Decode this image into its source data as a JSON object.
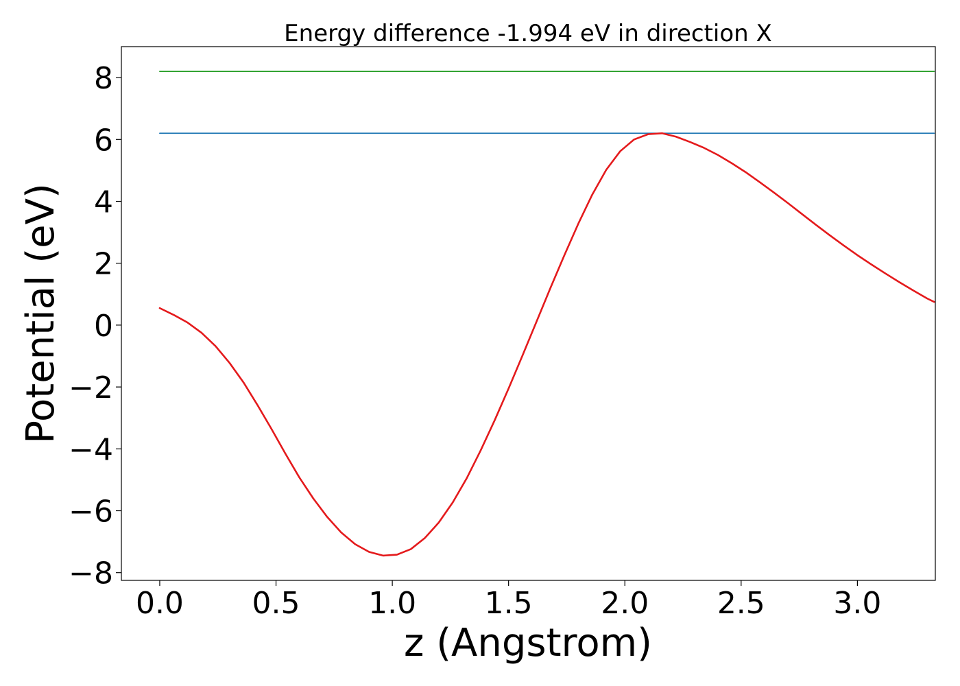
{
  "chart_data": {
    "type": "line",
    "title": "Energy difference -1.994 eV in direction X",
    "xlabel": "z (Angstrom)",
    "ylabel": "Potential (eV)",
    "xlim": [
      -0.165,
      3.335
    ],
    "ylim": [
      -8.25,
      9.0
    ],
    "xticks": [
      0.0,
      0.5,
      1.0,
      1.5,
      2.0,
      2.5,
      3.0
    ],
    "xtick_labels": [
      "0.0",
      "0.5",
      "1.0",
      "1.5",
      "2.0",
      "2.5",
      "3.0"
    ],
    "yticks": [
      -8,
      -6,
      -4,
      -2,
      0,
      2,
      4,
      6,
      8
    ],
    "ytick_labels": [
      "−8",
      "−6",
      "−4",
      "−2",
      "0",
      "2",
      "4",
      "6",
      "8"
    ],
    "grid": false,
    "legend": "none",
    "series": [
      {
        "color": "#2ca02c",
        "style": "horizontal",
        "x": [
          0.0,
          3.33
        ],
        "y": [
          8.2,
          8.2
        ]
      },
      {
        "color": "#1f77b4",
        "style": "horizontal",
        "x": [
          0.0,
          3.33
        ],
        "y": [
          6.2,
          6.2
        ]
      },
      {
        "color": "#e41a1c",
        "style": "curve",
        "x": [
          0.0,
          0.06,
          0.12,
          0.18,
          0.24,
          0.3,
          0.36,
          0.42,
          0.48,
          0.54,
          0.6,
          0.66,
          0.72,
          0.78,
          0.84,
          0.9,
          0.96,
          1.02,
          1.08,
          1.14,
          1.2,
          1.26,
          1.32,
          1.38,
          1.44,
          1.5,
          1.56,
          1.62,
          1.68,
          1.74,
          1.8,
          1.86,
          1.92,
          1.98,
          2.04,
          2.1,
          2.16,
          2.22,
          2.28,
          2.34,
          2.4,
          2.46,
          2.52,
          2.58,
          2.64,
          2.7,
          2.76,
          2.82,
          2.88,
          2.94,
          3.0,
          3.06,
          3.12,
          3.18,
          3.24,
          3.3,
          3.33
        ],
        "y": [
          0.55,
          0.33,
          0.08,
          -0.25,
          -0.68,
          -1.22,
          -1.85,
          -2.58,
          -3.35,
          -4.15,
          -4.92,
          -5.6,
          -6.2,
          -6.7,
          -7.08,
          -7.33,
          -7.45,
          -7.42,
          -7.24,
          -6.88,
          -6.38,
          -5.73,
          -4.95,
          -4.05,
          -3.08,
          -2.05,
          -0.98,
          0.11,
          1.2,
          2.26,
          3.28,
          4.22,
          5.02,
          5.62,
          6.0,
          6.17,
          6.2,
          6.09,
          5.92,
          5.73,
          5.5,
          5.23,
          4.94,
          4.62,
          4.29,
          3.95,
          3.6,
          3.25,
          2.91,
          2.58,
          2.26,
          1.96,
          1.67,
          1.39,
          1.12,
          0.86,
          0.75
        ]
      }
    ]
  }
}
